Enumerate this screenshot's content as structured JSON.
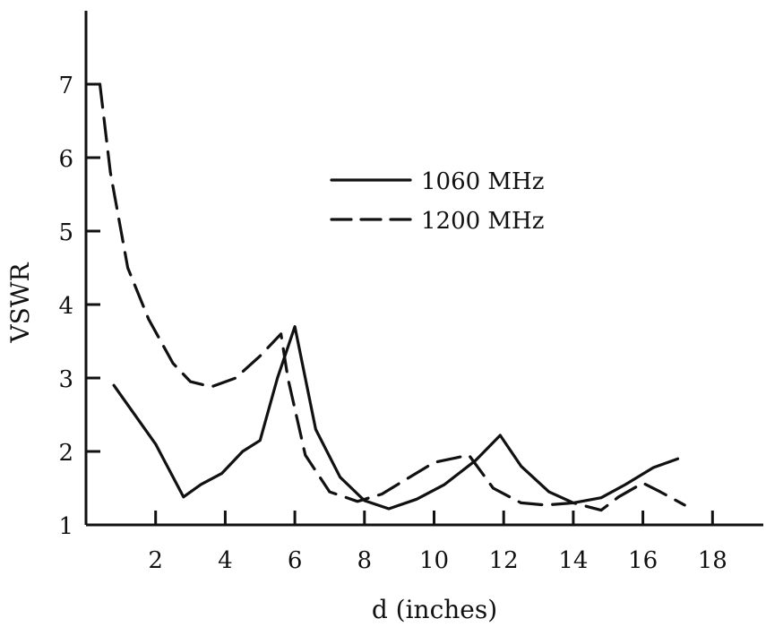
{
  "chart_data": {
    "type": "line",
    "title": "",
    "xlabel": "d (inches)",
    "ylabel": "VSWR",
    "xlim": [
      0,
      18
    ],
    "ylim": [
      1,
      7.5
    ],
    "x_ticks": [
      "2",
      "4",
      "6",
      "8",
      "10",
      "12",
      "14",
      "16",
      "18"
    ],
    "y_ticks": [
      "1",
      "2",
      "3",
      "4",
      "5",
      "6",
      "7"
    ],
    "grid": false,
    "legend_position": "top-center",
    "series": [
      {
        "name": "1060 MHz",
        "style": "solid",
        "x": [
          0.8,
          2.0,
          2.8,
          3.3,
          3.9,
          4.5,
          5.0,
          5.5,
          6.0,
          6.6,
          7.3,
          8.0,
          8.7,
          9.5,
          10.3,
          11.2,
          11.9,
          12.5,
          13.3,
          14.0,
          14.8,
          15.5,
          16.3,
          17.0
        ],
        "y": [
          2.9,
          2.1,
          1.38,
          1.55,
          1.7,
          2.0,
          2.15,
          3.0,
          3.7,
          2.3,
          1.65,
          1.33,
          1.22,
          1.35,
          1.55,
          1.88,
          2.22,
          1.8,
          1.45,
          1.3,
          1.37,
          1.55,
          1.78,
          1.9
        ]
      },
      {
        "name": "1200 MHz",
        "style": "dashed",
        "x": [
          0.4,
          0.7,
          1.2,
          1.8,
          2.5,
          3.0,
          3.6,
          4.3,
          5.0,
          5.6,
          5.8,
          6.3,
          7.0,
          7.8,
          8.5,
          9.3,
          10.0,
          11.0,
          11.7,
          12.5,
          13.2,
          14.0,
          14.8,
          15.3,
          16.0,
          16.5,
          17.2
        ],
        "y": [
          7.0,
          5.8,
          4.5,
          3.8,
          3.2,
          2.95,
          2.88,
          3.0,
          3.3,
          3.6,
          3.0,
          1.95,
          1.45,
          1.32,
          1.42,
          1.65,
          1.85,
          1.95,
          1.5,
          1.3,
          1.27,
          1.3,
          1.2,
          1.38,
          1.57,
          1.45,
          1.27
        ]
      }
    ]
  }
}
